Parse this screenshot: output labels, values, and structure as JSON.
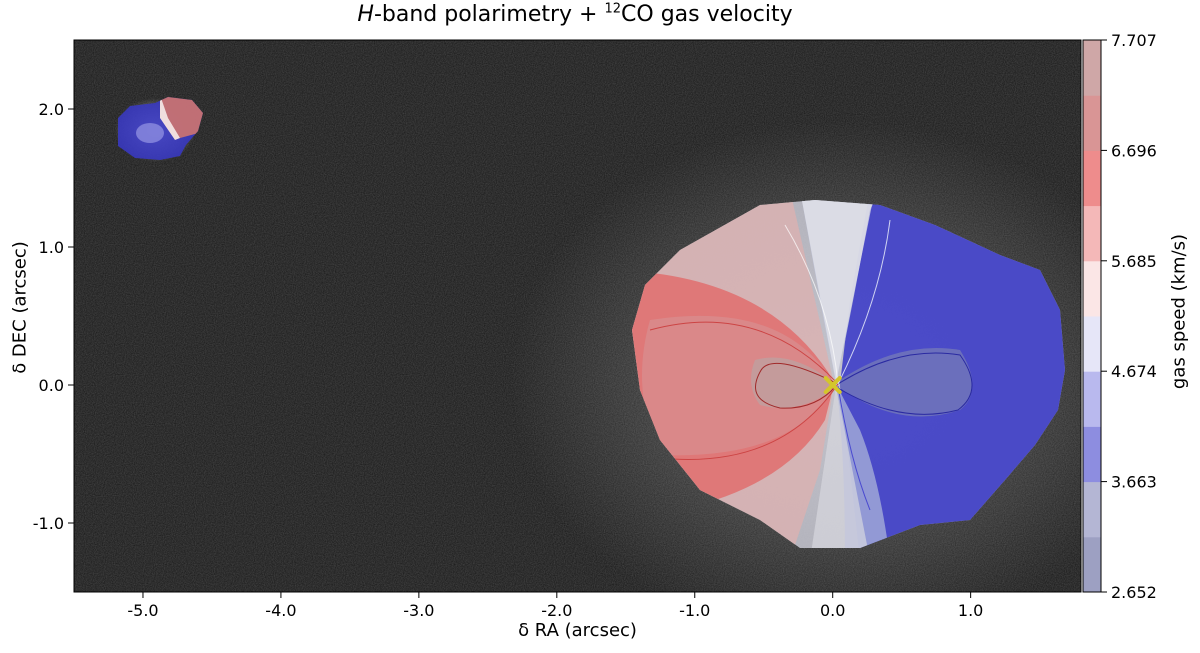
{
  "chart_data": {
    "type": "heatmap",
    "title": {
      "prefix_italic": "H",
      "middle": "-band polarimetry + ",
      "superscript": "12",
      "suffix": "CO gas velocity"
    },
    "xlabel": "δ RA (arcsec)",
    "ylabel": "δ DEC (arcsec)",
    "xlim": [
      -5.5,
      1.8
    ],
    "ylim": [
      -1.5,
      2.5
    ],
    "x_ticks": [
      {
        "value": -5.0,
        "label": "-5.0"
      },
      {
        "value": -4.0,
        "label": "-4.0"
      },
      {
        "value": -3.0,
        "label": "-3.0"
      },
      {
        "value": -2.0,
        "label": "-2.0"
      },
      {
        "value": -1.0,
        "label": "-1.0"
      },
      {
        "value": 0.0,
        "label": "0.0"
      },
      {
        "value": 1.0,
        "label": "1.0"
      }
    ],
    "y_ticks": [
      {
        "value": -1.0,
        "label": "-1.0"
      },
      {
        "value": 0.0,
        "label": "0.0"
      },
      {
        "value": 1.0,
        "label": "1.0"
      },
      {
        "value": 2.0,
        "label": "2.0"
      }
    ],
    "colorbar": {
      "label": "gas speed (km/s)",
      "vmin": 2.652,
      "vmax": 7.707,
      "ticks": [
        {
          "value": 2.652,
          "label": "2.652"
        },
        {
          "value": 3.663,
          "label": "3.663"
        },
        {
          "value": 4.674,
          "label": "4.674"
        },
        {
          "value": 5.685,
          "label": "5.685"
        },
        {
          "value": 6.696,
          "label": "6.696"
        },
        {
          "value": 7.707,
          "label": "7.707"
        }
      ],
      "levels": 10,
      "colormap": "seismic (transparent)"
    },
    "background": "#141414",
    "star_marker": {
      "x": 0.0,
      "y": 0.0,
      "symbol": "x",
      "color": "#d4c62a"
    },
    "companion": {
      "x": -4.85,
      "y": 1.85
    }
  }
}
